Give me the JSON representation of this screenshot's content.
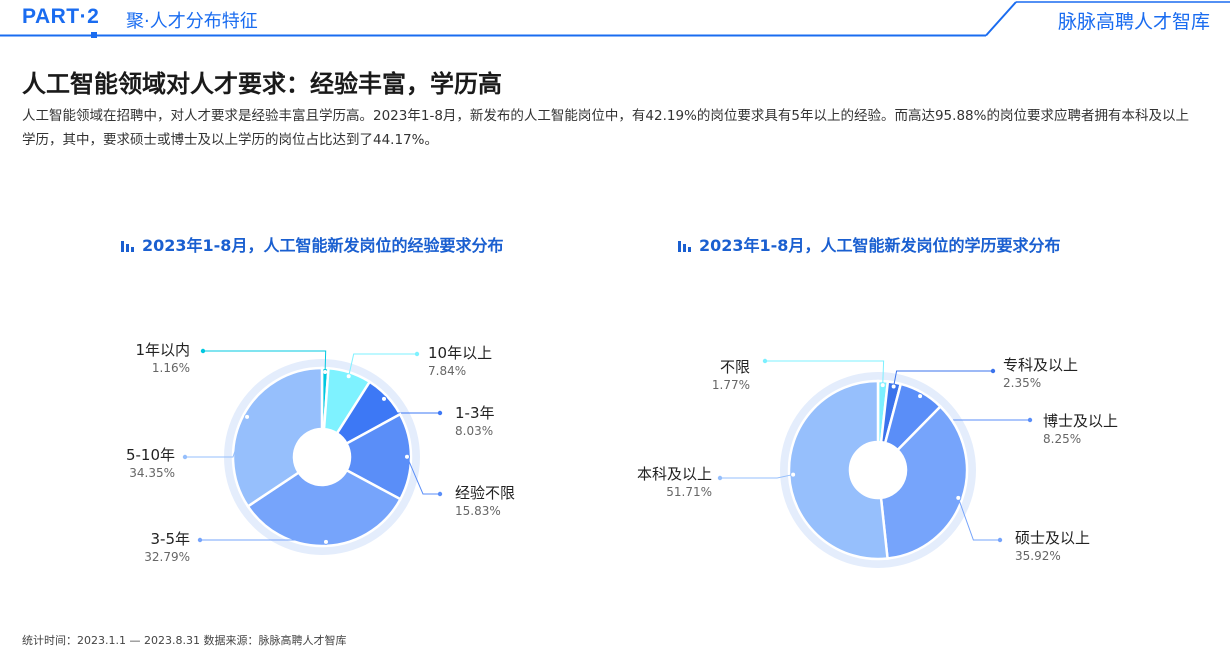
{
  "header": {
    "part": "PART·2",
    "section": "聚·人才分布特征",
    "brand": "脉脉高聘人才智库"
  },
  "page": {
    "title": "人工智能领域对人才要求：经验丰富，学历高",
    "description": "人工智能领域在招聘中，对人才要求是经验丰富且学历高。2023年1-8月，新发布的人工智能岗位中，有42.19%的岗位要求具有5年以上的经验。而高达95.88%的岗位要求应聘者拥有本科及以上学历，其中，要求硕士或博士及以上学历的岗位占比达到了44.17%。"
  },
  "colors": {
    "accent": "#1a6cf0",
    "ring": "#e4edfc"
  },
  "chart_data": [
    {
      "type": "pie",
      "donut": true,
      "title": "2023年1-8月，人工智能新发岗位的经验要求分布",
      "unit": "%",
      "slices": [
        {
          "label": "1年以内",
          "value": 1.16,
          "display": "1.16%",
          "color": "#00c8e0"
        },
        {
          "label": "10年以上",
          "value": 7.84,
          "display": "7.84%",
          "color": "#7ef2ff"
        },
        {
          "label": "1-3年",
          "value": 8.03,
          "display": "8.03%",
          "color": "#3d78f5"
        },
        {
          "label": "经验不限",
          "value": 15.83,
          "display": "15.83%",
          "color": "#5a8ef8"
        },
        {
          "label": "3-5年",
          "value": 32.79,
          "display": "32.79%",
          "color": "#76a4fb"
        },
        {
          "label": "5-10年",
          "value": 34.35,
          "display": "34.35%",
          "color": "#96bffc"
        }
      ]
    },
    {
      "type": "pie",
      "donut": true,
      "title": "2023年1-8月，人工智能新发岗位的学历要求分布",
      "unit": "%",
      "slices": [
        {
          "label": "不限",
          "value": 1.77,
          "display": "1.77%",
          "color": "#7cf0ff"
        },
        {
          "label": "专科及以上",
          "value": 2.35,
          "display": "2.35%",
          "color": "#3b73ec"
        },
        {
          "label": "博士及以上",
          "value": 8.25,
          "display": "8.25%",
          "color": "#5a8ef8"
        },
        {
          "label": "硕士及以上",
          "value": 35.92,
          "display": "35.92%",
          "color": "#76a4fb"
        },
        {
          "label": "本科及以上",
          "value": 51.71,
          "display": "51.71%",
          "color": "#96bffc"
        }
      ]
    }
  ],
  "footnote": "统计时间：2023.1.1 — 2023.8.31   数据来源：脉脉高聘人才智库"
}
